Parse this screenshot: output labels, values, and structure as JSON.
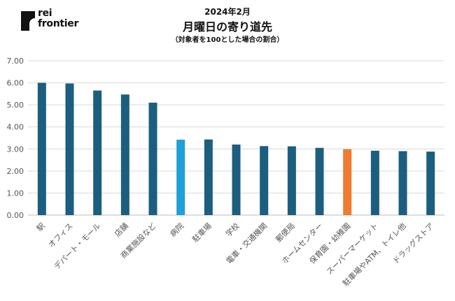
{
  "brand": {
    "name_line1": "rei",
    "name_line2": "frontier",
    "logo_icon": "rei-frontier-logo-icon"
  },
  "header": {
    "period": "2024年2月",
    "title": "月曜日の寄り道先",
    "note": "（対象者を100とした場合の割合）"
  },
  "chart_data": {
    "type": "bar",
    "title": "月曜日の寄り道先",
    "subtitle": "2024年2月",
    "xlabel": "",
    "ylabel": "",
    "ylim": [
      0,
      7
    ],
    "yticks": [
      "0.00",
      "1.00",
      "2.00",
      "3.00",
      "4.00",
      "5.00",
      "6.00",
      "7.00"
    ],
    "grid": true,
    "categories": [
      "駅",
      "オフィス",
      "デパート・モール",
      "店舗",
      "商業施設など",
      "病院",
      "駐車場",
      "学校",
      "電車・交通機関",
      "郵便局",
      "ホームセンター",
      "保育園・幼稚園",
      "スーパーマーケット",
      "駐車場やATM、トイレ他",
      "ドラッグストア"
    ],
    "values": [
      6.0,
      5.97,
      5.65,
      5.47,
      5.1,
      3.42,
      3.43,
      3.2,
      3.13,
      3.12,
      3.05,
      2.99,
      2.92,
      2.9,
      2.88
    ],
    "colors": [
      "#1b5e80",
      "#1b5e80",
      "#1b5e80",
      "#1b5e80",
      "#1b5e80",
      "#1fa0d8",
      "#1b5e80",
      "#1b5e80",
      "#1b5e80",
      "#1b5e80",
      "#1b5e80",
      "#f07a30",
      "#1b5e80",
      "#1b5e80",
      "#1b5e80"
    ]
  }
}
